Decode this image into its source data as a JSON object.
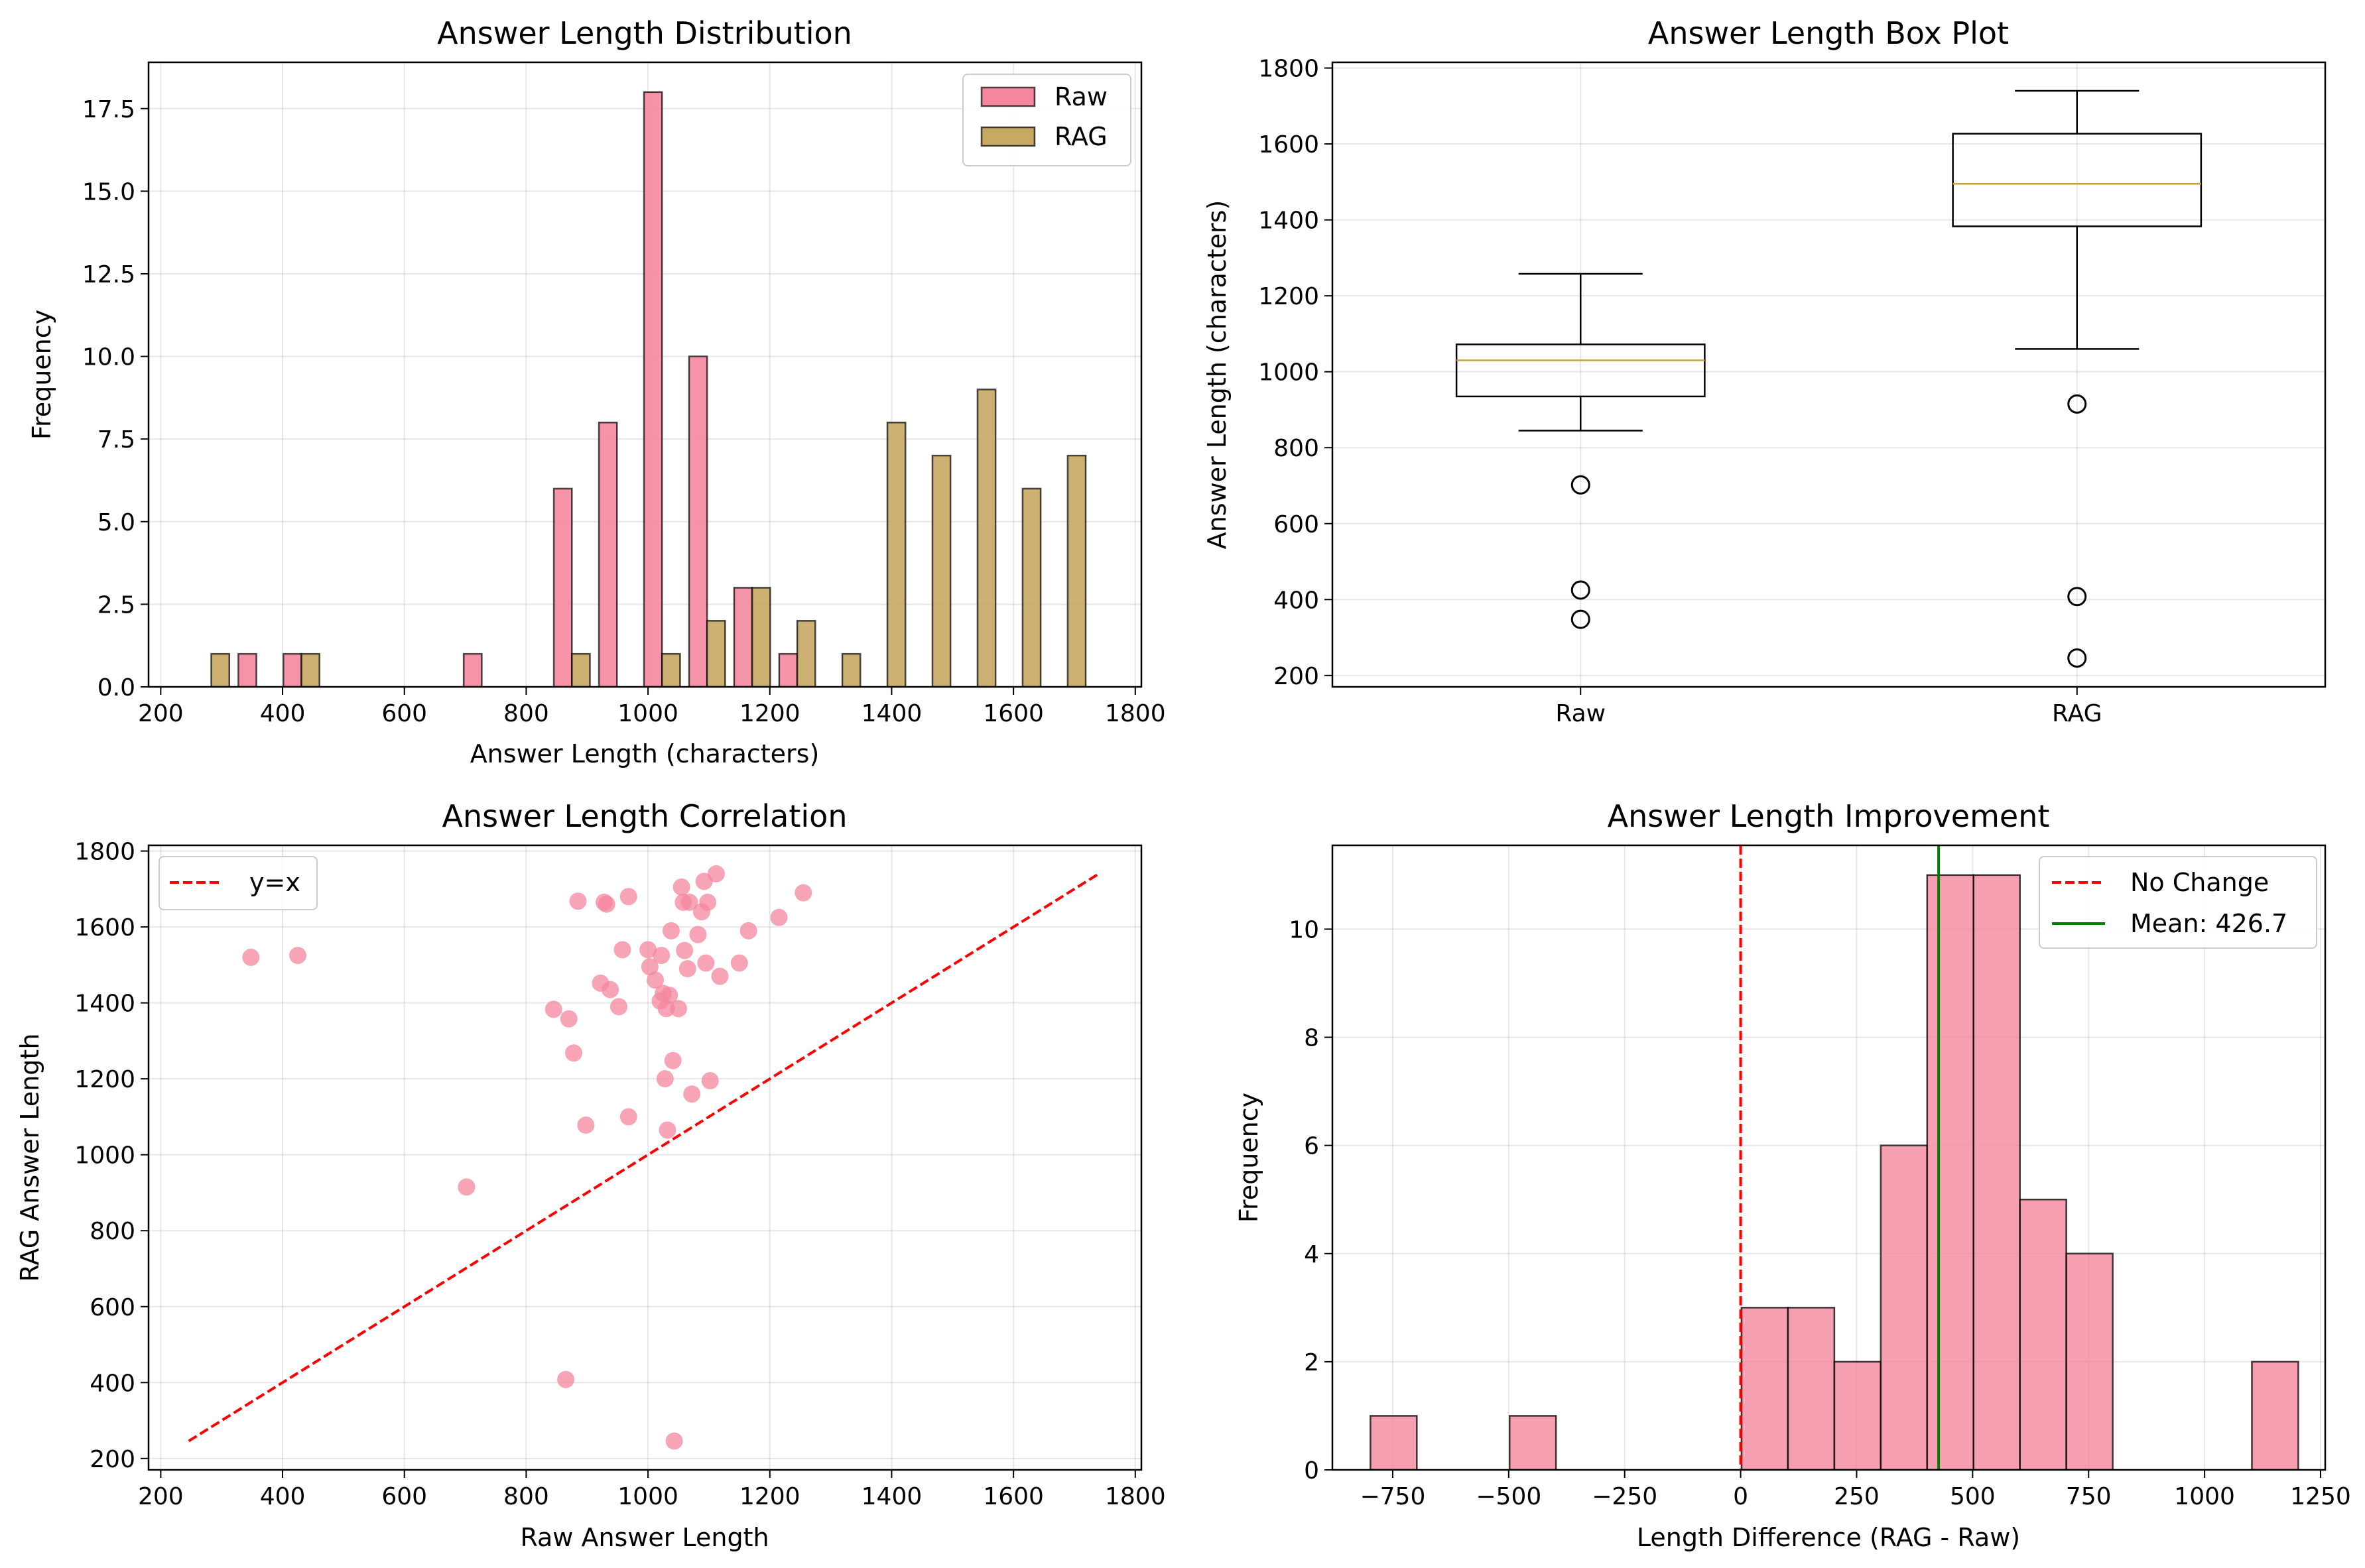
{
  "chart_data": [
    {
      "type": "bar",
      "title": "Answer Length Distribution",
      "xlabel": "Answer Length (characters)",
      "ylabel": "Frequency",
      "xlim": [
        180,
        1810
      ],
      "ylim": [
        0,
        18.9
      ],
      "xticks": [
        200,
        400,
        600,
        800,
        1000,
        1200,
        1400,
        1600,
        1800
      ],
      "yticks": [
        "0.0",
        "2.5",
        "5.0",
        "7.5",
        "10.0",
        "12.5",
        "15.0",
        "17.5"
      ],
      "grid": true,
      "legend_position": "top-right",
      "bin_edges": [
        246,
        320,
        394,
        468,
        542,
        616,
        690,
        764,
        838,
        912,
        986,
        1060,
        1134,
        1208,
        1282,
        1356,
        1430,
        1504,
        1578,
        1652,
        1726
      ],
      "series": [
        {
          "name": "Raw",
          "color": "#f4879e",
          "values": [
            0,
            1,
            1,
            0,
            0,
            0,
            1,
            0,
            6,
            8,
            18,
            10,
            3,
            1,
            0,
            0,
            0,
            0,
            0,
            0
          ]
        },
        {
          "name": "RAG",
          "color": "#c8a964",
          "values": [
            1,
            0,
            1,
            0,
            0,
            0,
            0,
            0,
            1,
            0,
            1,
            2,
            3,
            2,
            1,
            8,
            7,
            9,
            6,
            7
          ]
        }
      ]
    },
    {
      "type": "box",
      "title": "Answer Length Box Plot",
      "xlabel": "",
      "ylabel": "Answer Length (characters)",
      "ylim": [
        170,
        1815
      ],
      "yticks": [
        200,
        400,
        600,
        800,
        1000,
        1200,
        1400,
        1600,
        1800
      ],
      "categories": [
        "Raw",
        "RAG"
      ],
      "grid": true,
      "boxes": [
        {
          "label": "Raw",
          "whisker_low": 845,
          "q1": 935,
          "median": 1030,
          "q3": 1072,
          "whisker_high": 1258,
          "outliers": [
            702,
            425,
            348
          ]
        },
        {
          "label": "RAG",
          "whisker_low": 1060,
          "q1": 1383,
          "median": 1495,
          "q3": 1627,
          "whisker_high": 1740,
          "outliers": [
            915,
            408,
            246
          ]
        }
      ]
    },
    {
      "type": "scatter",
      "title": "Answer Length Correlation",
      "xlabel": "Raw Answer Length",
      "ylabel": "RAG Answer Length",
      "xlim": [
        180,
        1810
      ],
      "ylim": [
        170,
        1815
      ],
      "xticks": [
        200,
        400,
        600,
        800,
        1000,
        1200,
        1400,
        1600,
        1800
      ],
      "yticks": [
        200,
        400,
        600,
        800,
        1000,
        1200,
        1400,
        1600,
        1800
      ],
      "grid": true,
      "legend_position": "top-left",
      "reference_line": {
        "name": "y=x",
        "from": [
          246,
          246
        ],
        "to": [
          1740,
          1740
        ],
        "color": "#ff0000"
      },
      "series": [
        {
          "name": "points",
          "color": "#f4879e",
          "points": [
            [
              348,
              1520
            ],
            [
              425,
              1525
            ],
            [
              702,
              915
            ],
            [
              845,
              1383
            ],
            [
              865,
              408
            ],
            [
              870,
              1358
            ],
            [
              878,
              1268
            ],
            [
              885,
              1668
            ],
            [
              898,
              1078
            ],
            [
              922,
              1452
            ],
            [
              928,
              1665
            ],
            [
              932,
              1660
            ],
            [
              938,
              1435
            ],
            [
              952,
              1390
            ],
            [
              958,
              1540
            ],
            [
              968,
              1680
            ],
            [
              968,
              1100
            ],
            [
              1000,
              1540
            ],
            [
              1003,
              1495
            ],
            [
              1012,
              1460
            ],
            [
              1020,
              1405
            ],
            [
              1022,
              1525
            ],
            [
              1025,
              1425
            ],
            [
              1028,
              1200
            ],
            [
              1030,
              1385
            ],
            [
              1032,
              1065
            ],
            [
              1035,
              1420
            ],
            [
              1038,
              1590
            ],
            [
              1041,
              1248
            ],
            [
              1043,
              246
            ],
            [
              1050,
              1385
            ],
            [
              1055,
              1705
            ],
            [
              1058,
              1665
            ],
            [
              1060,
              1538
            ],
            [
              1065,
              1490
            ],
            [
              1068,
              1665
            ],
            [
              1072,
              1160
            ],
            [
              1082,
              1580
            ],
            [
              1088,
              1640
            ],
            [
              1092,
              1720
            ],
            [
              1095,
              1505
            ],
            [
              1098,
              1665
            ],
            [
              1102,
              1195
            ],
            [
              1112,
              1740
            ],
            [
              1118,
              1470
            ],
            [
              1150,
              1505
            ],
            [
              1165,
              1590
            ],
            [
              1215,
              1625
            ],
            [
              1255,
              1690
            ]
          ]
        }
      ]
    },
    {
      "type": "bar",
      "title": "Answer Length Improvement",
      "xlabel": "Length Difference (RAG - Raw)",
      "ylabel": "Frequency",
      "xlim": [
        -880,
        1260
      ],
      "ylim": [
        0,
        11.55
      ],
      "xticks": [
        "−750",
        "−500",
        "−250",
        "0",
        "250",
        "500",
        "750",
        "1000",
        "1250"
      ],
      "yticks": [
        "0",
        "2",
        "4",
        "6",
        "8",
        "10"
      ],
      "grid": true,
      "legend_position": "top-right",
      "bin_edges": [
        -798,
        -698,
        -598,
        -498,
        -398,
        -298,
        -198,
        -98,
        2,
        102,
        202,
        302,
        402,
        502,
        602,
        702,
        802,
        902,
        1002,
        1102,
        1202
      ],
      "series": [
        {
          "name": "Length Difference",
          "color": "#f4879e",
          "values": [
            1,
            0,
            0,
            1,
            0,
            0,
            0,
            0,
            3,
            3,
            2,
            6,
            11,
            11,
            5,
            4,
            0,
            0,
            0,
            2
          ]
        }
      ],
      "reference_lines": [
        {
          "name": "No Change",
          "x": 0,
          "color": "#ff0000",
          "style": "dashed"
        },
        {
          "name": "Mean: 426.7",
          "x": 426.7,
          "color": "#008000",
          "style": "solid"
        }
      ]
    }
  ]
}
